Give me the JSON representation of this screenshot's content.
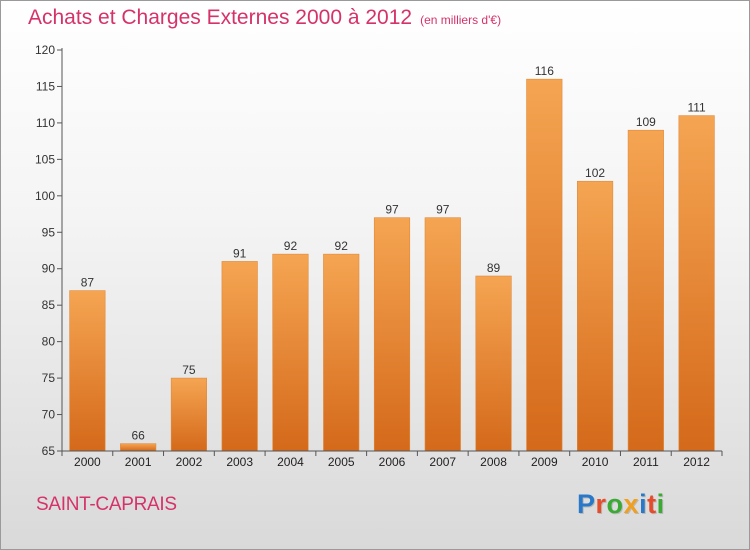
{
  "title": "Achats et Charges Externes 2000 à 2012",
  "subtitle": "(en milliers d'€)",
  "commune": "SAINT-CAPRAIS",
  "logo": {
    "letters": [
      "P",
      "r",
      "o",
      "x",
      "i",
      "t",
      "i"
    ],
    "colors": [
      "#2a79c8",
      "#e64c2b",
      "#3aaa35",
      "#f0a020",
      "#2a79c8",
      "#e64c2b",
      "#3aaa35"
    ]
  },
  "colors": {
    "bar_top": "#f5a552",
    "bar_bottom": "#d4691a",
    "title": "#d6326a",
    "axis": "#333333"
  },
  "chart_data": {
    "type": "bar",
    "title": "Achats et Charges Externes 2000 à 2012",
    "subtitle": "(en milliers d'€)",
    "categories": [
      "2000",
      "2001",
      "2002",
      "2003",
      "2004",
      "2005",
      "2006",
      "2007",
      "2008",
      "2009",
      "2010",
      "2011",
      "2012"
    ],
    "values": [
      87,
      66,
      75,
      91,
      92,
      92,
      97,
      97,
      89,
      116,
      102,
      109,
      111
    ],
    "ylim": [
      65,
      120
    ],
    "yticks": [
      65,
      70,
      75,
      80,
      85,
      90,
      95,
      100,
      105,
      110,
      115,
      120
    ],
    "grid": false,
    "legend": "none",
    "xlabel": "",
    "ylabel": ""
  }
}
